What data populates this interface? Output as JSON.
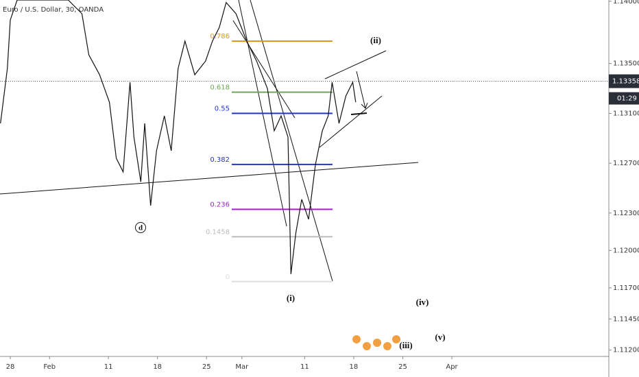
{
  "title": "Euro / U.S. Dollar, 30, OANDA",
  "chart_data": {
    "type": "line",
    "x": [
      -1.0,
      -0.3,
      0,
      0.7,
      3.1,
      5.9,
      7.3,
      8.0,
      9.1,
      10.1,
      10.8,
      11.5,
      12.2,
      12.6,
      13.3,
      13.7,
      14.3,
      14.9,
      15.7,
      16.4,
      17.1,
      17.8,
      18.8,
      19.9,
      20.6,
      21.3,
      22.0,
      23.0,
      24.1,
      25.1,
      26.2,
      26.9,
      27.6,
      28.3,
      28.6,
      29.1,
      29.7,
      30.4,
      31.1,
      31.8,
      32.4,
      32.8,
      33.5,
      34.2,
      34.9,
      35.2
    ],
    "values": [
      1.1302,
      1.1346,
      1.1385,
      1.1401,
      1.1401,
      1.1401,
      1.139,
      1.1357,
      1.1341,
      1.1319,
      1.1274,
      1.1263,
      1.1335,
      1.1291,
      1.1255,
      1.1302,
      1.1236,
      1.128,
      1.1308,
      1.128,
      1.1346,
      1.1368,
      1.1341,
      1.1352,
      1.1368,
      1.1379,
      1.1399,
      1.139,
      1.1368,
      1.1352,
      1.133,
      1.1296,
      1.1308,
      1.1291,
      1.1181,
      1.1214,
      1.1241,
      1.1225,
      1.1269,
      1.1296,
      1.1308,
      1.1335,
      1.1302,
      1.1324,
      1.1335,
      1.1319
    ],
    "color": "#111111",
    "xlim": [
      -1.05,
      61.0
    ],
    "xticks": [
      {
        "value": 0,
        "label": "28"
      },
      {
        "value": 4,
        "label": "Feb"
      },
      {
        "value": 10,
        "label": "11"
      },
      {
        "value": 15,
        "label": "18"
      },
      {
        "value": 20,
        "label": "25"
      },
      {
        "value": 23.6,
        "label": "Mar"
      },
      {
        "value": 30,
        "label": "11"
      },
      {
        "value": 35,
        "label": "18"
      },
      {
        "value": 40,
        "label": "25"
      },
      {
        "value": 45,
        "label": "Apr"
      }
    ],
    "ylim": [
      1.1116,
      1.1401
    ],
    "yticks": [
      {
        "value": 1.14,
        "label": "1.14000"
      },
      {
        "value": 1.135,
        "label": "1.13500"
      },
      {
        "value": 1.131,
        "label": "1.13100"
      },
      {
        "value": 1.127,
        "label": "1.12700"
      },
      {
        "value": 1.123,
        "label": "1.12300"
      },
      {
        "value": 1.12,
        "label": "1.12000"
      },
      {
        "value": 1.117,
        "label": "1.11700"
      },
      {
        "value": 1.1145,
        "label": "1.11450"
      },
      {
        "value": 1.112,
        "label": "1.11200"
      }
    ],
    "last_price": {
      "value": 1.13358,
      "label": "1.13358"
    },
    "countdown": "01:29",
    "fib_levels": [
      {
        "ratio": 0.786,
        "price": 1.1368,
        "color": "#e0981a"
      },
      {
        "ratio": 0.618,
        "price": 1.1327,
        "color": "#6aa84f"
      },
      {
        "ratio": 0.55,
        "price": 1.131,
        "color": "#2233cc"
      },
      {
        "ratio": 0.382,
        "price": 1.1269,
        "color": "#2233cc"
      },
      {
        "ratio": 0.236,
        "price": 1.1233,
        "color": "#9922cc"
      },
      {
        "ratio": 0.1458,
        "price": 1.1211,
        "color": "#bbbbbb"
      },
      {
        "ratio": 0,
        "price": 1.1175,
        "color": "#dddddd"
      }
    ],
    "annotations": [
      "(ii)",
      "(i)",
      "d",
      "(iii)",
      "(iv)",
      "(v)"
    ]
  }
}
